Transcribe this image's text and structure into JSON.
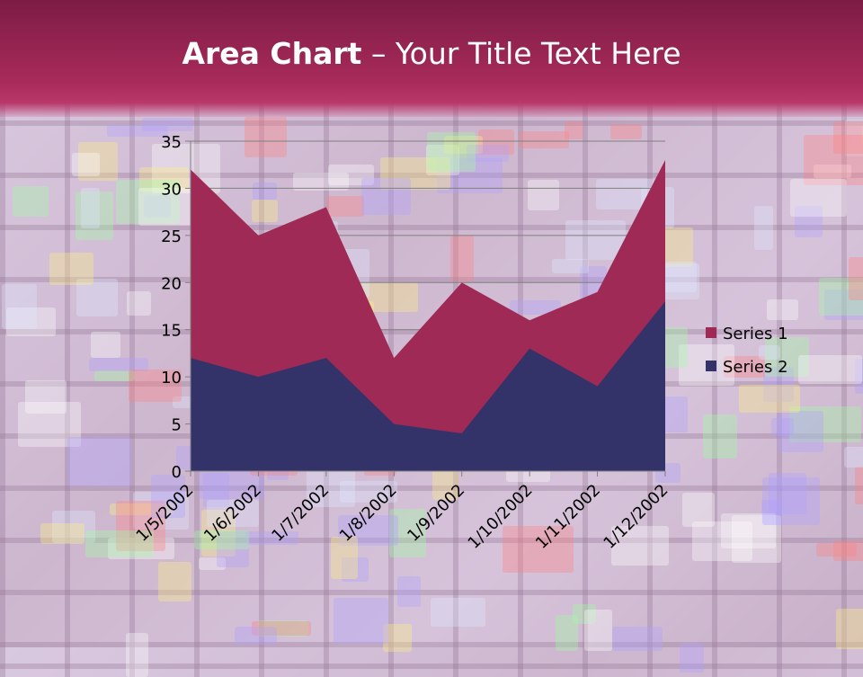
{
  "slide": {
    "title_bold": "Area Chart",
    "title_rest": " – Your Title Text Here"
  },
  "chart_data": {
    "type": "area",
    "title": "",
    "xlabel": "",
    "ylabel": "",
    "categories": [
      "1/5/2002",
      "1/6/2002",
      "1/7/2002",
      "1/8/2002",
      "1/9/2002",
      "1/10/2002",
      "1/11/2002",
      "1/12/2002"
    ],
    "series": [
      {
        "name": "Series 1",
        "values": [
          32,
          25,
          28,
          12,
          20,
          16,
          19,
          33
        ],
        "color": "#9e2a55"
      },
      {
        "name": "Series 2",
        "values": [
          12,
          10,
          12,
          5,
          4,
          13,
          9,
          18
        ],
        "color": "#33336a"
      }
    ],
    "ylim": [
      0,
      35
    ],
    "yticks": [
      0,
      5,
      10,
      15,
      20,
      25,
      30,
      35
    ],
    "grid": true,
    "legend": "right"
  }
}
